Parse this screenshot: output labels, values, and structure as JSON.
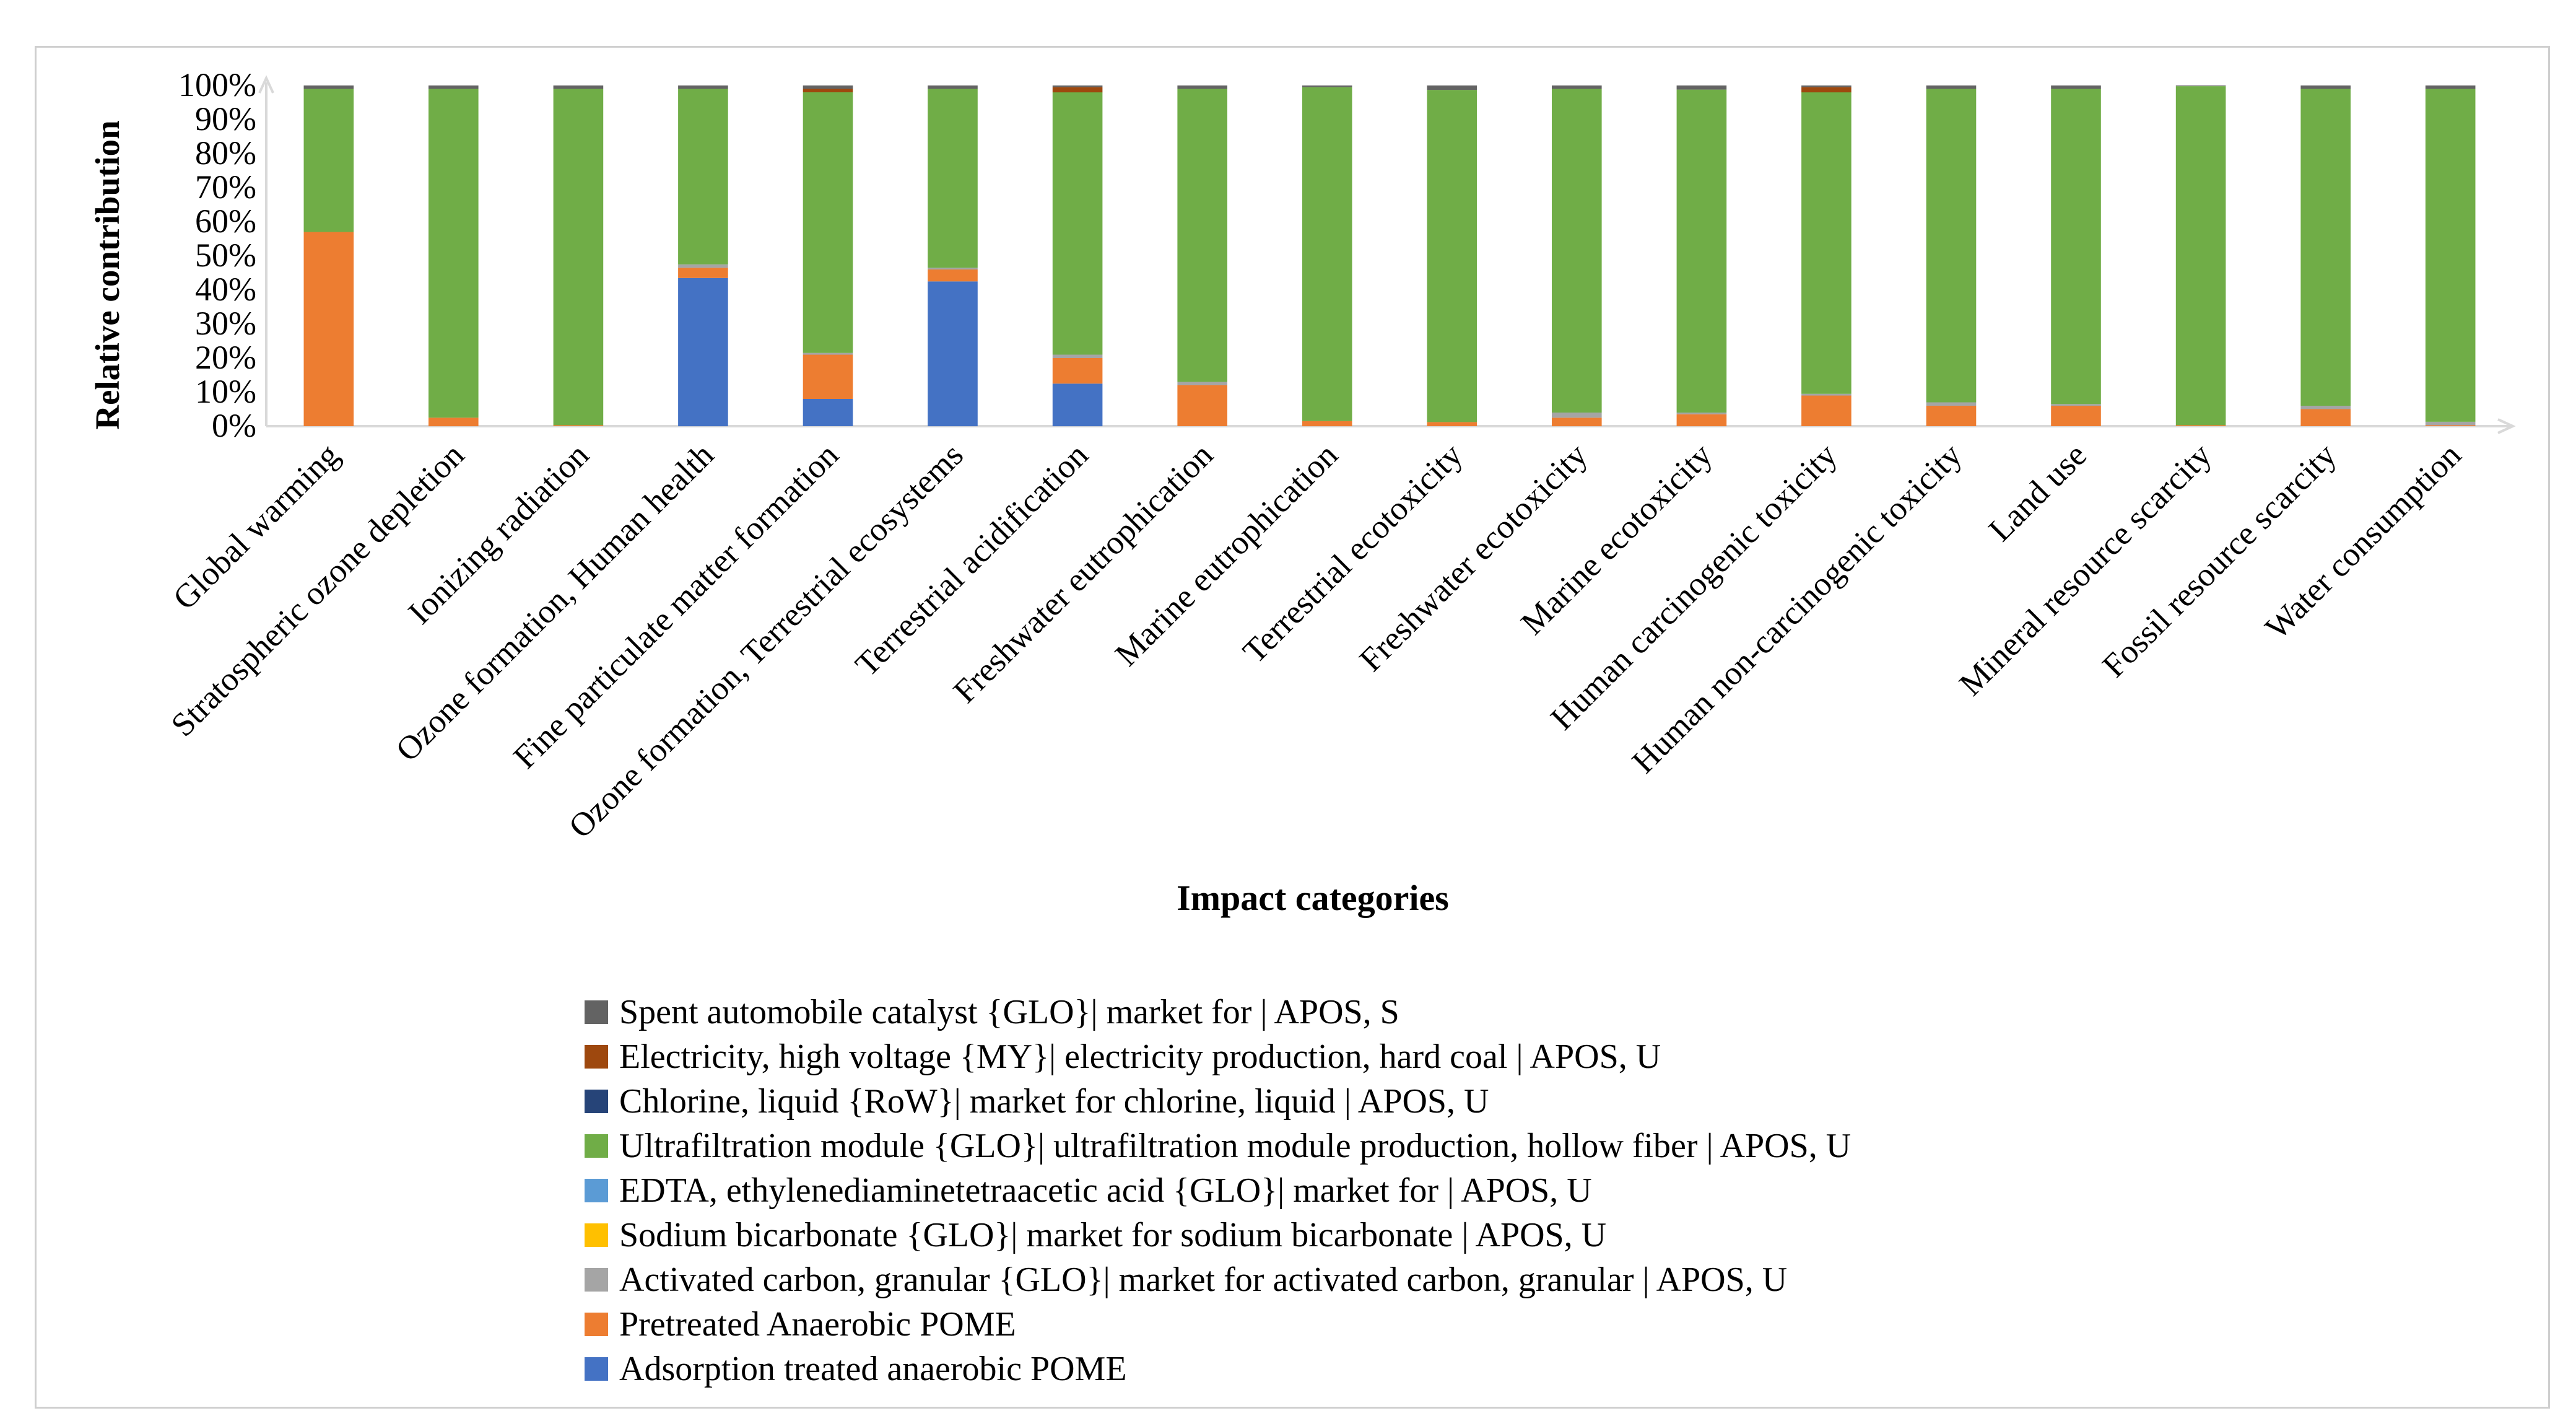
{
  "chart_data": {
    "type": "stacked-bar-percent",
    "title": "",
    "xlabel": "Impact categories",
    "ylabel": "Relative contribution",
    "ylim": [
      0,
      100
    ],
    "yticks": [
      "0%",
      "10%",
      "20%",
      "30%",
      "40%",
      "50%",
      "60%",
      "70%",
      "80%",
      "90%",
      "100%"
    ],
    "categories": [
      "Global warming",
      "Stratospheric ozone depletion",
      "Ionizing radiation",
      "Ozone formation, Human health",
      "Fine particulate matter formation",
      "Ozone formation, Terrestrial ecosystems",
      "Terrestrial acidification",
      "Freshwater eutrophication",
      "Marine eutrophication",
      "Terrestrial ecotoxicity",
      "Freshwater ecotoxicity",
      "Marine ecotoxicity",
      "Human carcinogenic toxicity",
      "Human non-carcinogenic toxicity",
      "Land use",
      "Mineral resource scarcity",
      "Fossil resource scarcity",
      "Water consumption"
    ],
    "series": [
      {
        "name": "Adsorption treated anaerobic POME",
        "color": "#4472c4",
        "values": [
          0,
          0,
          0,
          43.5,
          8,
          42.5,
          12.5,
          0,
          0,
          0,
          0,
          0,
          0,
          0,
          0,
          0,
          0,
          0
        ]
      },
      {
        "name": "Pretreated Anaerobic POME",
        "color": "#ed7d31",
        "values": [
          57,
          2.5,
          0.3,
          3,
          13,
          3.5,
          7.5,
          12,
          1.5,
          1.2,
          2.5,
          3.5,
          9,
          6,
          6,
          0.3,
          5,
          0.3
        ]
      },
      {
        "name": "Activated carbon, granular {GLO}| market for activated carbon, granular | APOS, U",
        "color": "#a5a5a5",
        "values": [
          0,
          0,
          0,
          1,
          0.5,
          0.5,
          1,
          1,
          0,
          0,
          1.5,
          0.5,
          0.5,
          1,
          0.5,
          0,
          1,
          1
        ]
      },
      {
        "name": "Sodium bicarbonate {GLO}| market for sodium bicarbonate | APOS, U",
        "color": "#ffc000",
        "values": [
          0,
          0,
          0,
          0,
          0,
          0,
          0,
          0,
          0,
          0,
          0,
          0,
          0,
          0,
          0,
          0,
          0,
          0
        ]
      },
      {
        "name": "EDTA, ethylenediaminetetraacetic acid {GLO}| market for | APOS, U",
        "color": "#5b9bd5",
        "values": [
          0,
          0,
          0,
          0,
          0,
          0,
          0,
          0,
          0,
          0,
          0,
          0,
          0,
          0,
          0,
          0,
          0,
          0
        ]
      },
      {
        "name": "Ultrafiltration module {GLO}| ultrafiltration module production, hollow fiber | APOS, U",
        "color": "#70ad47",
        "values": [
          42,
          96.5,
          98.7,
          51.5,
          76.5,
          52.5,
          77,
          86,
          98,
          97.5,
          95,
          94.8,
          88.5,
          92,
          92.5,
          99.5,
          93,
          97.7
        ]
      },
      {
        "name": "Chlorine, liquid {RoW}| market for chlorine, liquid | APOS, U",
        "color": "#264478",
        "values": [
          0,
          0,
          0,
          0,
          0,
          0,
          0,
          0,
          0,
          0,
          0,
          0,
          0,
          0,
          0,
          0,
          0,
          0
        ]
      },
      {
        "name": "Electricity, high voltage {MY}| electricity production, hard coal | APOS, U",
        "color": "#9e480e",
        "values": [
          0,
          0,
          0,
          0,
          1,
          0,
          1.5,
          0,
          0,
          0,
          0,
          0,
          1.5,
          0,
          0,
          0,
          0,
          0
        ]
      },
      {
        "name": "Spent automobile catalyst {GLO}| market for | APOS, S",
        "color": "#636363",
        "values": [
          1,
          1,
          1,
          1,
          1,
          1,
          0.5,
          1,
          0.5,
          1.3,
          1,
          1.2,
          0.5,
          1,
          1,
          0.2,
          1,
          1
        ]
      }
    ],
    "legend": {
      "position": "bottom",
      "order": [
        "Spent automobile catalyst {GLO}| market for | APOS, S",
        "Electricity, high voltage {MY}| electricity production, hard coal | APOS, U",
        "Chlorine, liquid {RoW}| market for chlorine, liquid | APOS, U",
        "Ultrafiltration module {GLO}| ultrafiltration module production, hollow fiber | APOS, U",
        "EDTA, ethylenediaminetetraacetic acid {GLO}| market for | APOS, U",
        "Sodium bicarbonate {GLO}| market for sodium bicarbonate | APOS, U",
        "Activated carbon, granular {GLO}| market for activated carbon, granular | APOS, U",
        "Pretreated Anaerobic POME",
        "Adsorption treated anaerobic POME"
      ]
    }
  }
}
